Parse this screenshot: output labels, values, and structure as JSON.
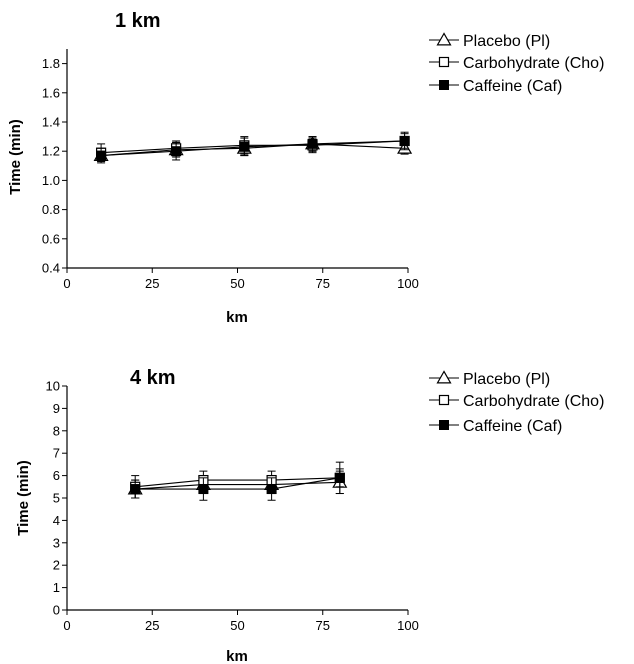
{
  "chart_data": [
    {
      "type": "line",
      "title": "1 km",
      "xlabel": "km",
      "ylabel": "Time (min)",
      "xlim": [
        0,
        100
      ],
      "ylim": [
        0.4,
        1.9
      ],
      "xticks": [
        0,
        25,
        50,
        75,
        100
      ],
      "yticks": [
        0.4,
        0.6,
        0.8,
        1.0,
        1.2,
        1.4,
        1.6,
        1.8
      ],
      "ytick_labels": [
        "0.4",
        "0.6",
        "0.8",
        "1.0",
        "1.2",
        "1.4",
        "1.6",
        "1.8"
      ],
      "legend_position": "top-right",
      "x": [
        10,
        32,
        52,
        72,
        99
      ],
      "series": [
        {
          "name": "Placebo (Pl)",
          "marker": "triangle-open",
          "values": [
            1.17,
            1.21,
            1.22,
            1.25,
            1.22
          ],
          "errors": [
            0.04,
            0.05,
            0.05,
            0.05,
            0.04
          ]
        },
        {
          "name": "Carbohydrate (Cho)",
          "marker": "square-open",
          "values": [
            1.19,
            1.22,
            1.24,
            1.24,
            1.27
          ],
          "errors": [
            0.06,
            0.05,
            0.06,
            0.05,
            0.06
          ]
        },
        {
          "name": "Caffeine (Caf)",
          "marker": "square-filled",
          "values": [
            1.17,
            1.2,
            1.23,
            1.25,
            1.27
          ],
          "errors": [
            0.05,
            0.06,
            0.06,
            0.05,
            0.05
          ]
        }
      ]
    },
    {
      "type": "line",
      "title": "4 km",
      "xlabel": "km",
      "ylabel": "Time (min)",
      "xlim": [
        0,
        100
      ],
      "ylim": [
        0,
        10
      ],
      "xticks": [
        0,
        25,
        50,
        75,
        100
      ],
      "yticks": [
        0,
        1,
        2,
        3,
        4,
        5,
        6,
        7,
        8,
        9,
        10
      ],
      "ytick_labels": [
        "0",
        "1",
        "2",
        "3",
        "4",
        "5",
        "6",
        "7",
        "8",
        "9",
        "10"
      ],
      "legend_position": "top-right",
      "x": [
        20,
        40,
        60,
        80
      ],
      "series": [
        {
          "name": "Placebo (Pl)",
          "marker": "triangle-open",
          "values": [
            5.4,
            5.6,
            5.6,
            5.7
          ],
          "errors": [
            0.4,
            0.4,
            0.4,
            0.5
          ]
        },
        {
          "name": "Carbohydrate (Cho)",
          "marker": "square-open",
          "values": [
            5.5,
            5.8,
            5.8,
            5.9
          ],
          "errors": [
            0.5,
            0.4,
            0.4,
            0.7
          ]
        },
        {
          "name": "Caffeine (Caf)",
          "marker": "square-filled",
          "values": [
            5.4,
            5.4,
            5.4,
            5.9
          ],
          "errors": [
            0.4,
            0.5,
            0.5,
            0.4
          ]
        }
      ]
    }
  ]
}
